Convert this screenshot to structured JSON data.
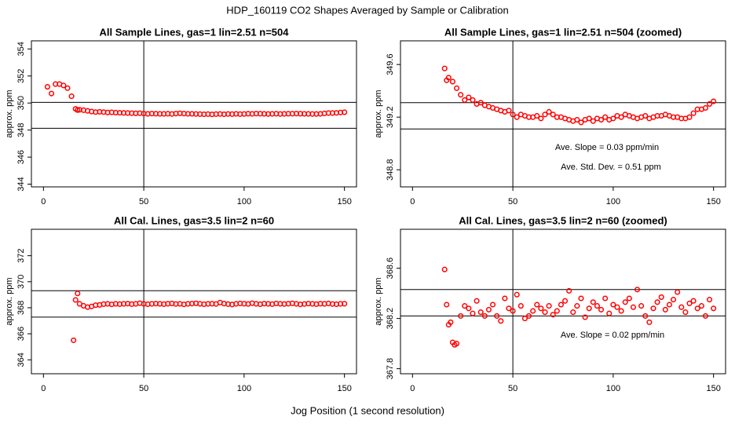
{
  "title": "HDP_160119  CO2 Shapes Averaged by Sample or Calibration",
  "xlabel": "Jog Position (1 second resolution)",
  "chart_data": [
    {
      "type": "scatter",
      "title": "All Sample Lines, gas=1 lin=2.51 n=504",
      "ylabel": "approx. ppm",
      "color": "#ff0000",
      "xlim": [
        -6,
        156
      ],
      "xticks": [
        0,
        50,
        100,
        150
      ],
      "ylim": [
        343.8,
        354.6
      ],
      "yticks": [
        344,
        346,
        348,
        350,
        352,
        354
      ],
      "hlines": [
        350.05,
        348.13
      ],
      "vlines": [
        50
      ],
      "x": [
        2,
        4,
        6,
        8,
        10,
        12,
        14,
        16,
        17,
        18,
        20,
        22,
        24,
        26,
        28,
        30,
        32,
        34,
        36,
        38,
        40,
        42,
        44,
        46,
        48,
        50,
        52,
        54,
        56,
        58,
        60,
        62,
        64,
        66,
        68,
        70,
        72,
        74,
        76,
        78,
        80,
        82,
        84,
        86,
        88,
        90,
        92,
        94,
        96,
        98,
        100,
        102,
        104,
        106,
        108,
        110,
        112,
        114,
        116,
        118,
        120,
        122,
        124,
        126,
        128,
        130,
        132,
        134,
        136,
        138,
        140,
        142,
        144,
        146,
        148,
        150
      ],
      "values": [
        351.2,
        350.7,
        351.4,
        351.4,
        351.3,
        351.1,
        350.5,
        349.57,
        349.48,
        349.5,
        349.47,
        349.42,
        349.37,
        349.33,
        349.35,
        349.33,
        349.3,
        349.31,
        349.29,
        349.28,
        349.27,
        349.26,
        349.25,
        349.24,
        349.25,
        349.22,
        349.2,
        349.22,
        349.21,
        349.2,
        349.2,
        349.21,
        349.19,
        349.22,
        349.24,
        349.22,
        349.2,
        349.2,
        349.19,
        349.18,
        349.17,
        349.18,
        349.16,
        349.18,
        349.19,
        349.17,
        349.19,
        349.18,
        349.2,
        349.18,
        349.19,
        349.21,
        349.2,
        349.22,
        349.21,
        349.2,
        349.19,
        349.2,
        349.21,
        349.19,
        349.2,
        349.21,
        349.21,
        349.22,
        349.21,
        349.2,
        349.2,
        349.19,
        349.19,
        349.2,
        349.23,
        349.26,
        349.26,
        349.27,
        349.3,
        349.32
      ]
    },
    {
      "type": "scatter",
      "title": "All Sample Lines, gas=1 lin=2.51 n=504 (zoomed)",
      "ylabel": "approx. ppm",
      "color": "#ff0000",
      "xlim": [
        -6,
        156
      ],
      "xticks": [
        0,
        50,
        100,
        150
      ],
      "ylim": [
        348.67,
        349.78
      ],
      "yticks": [
        348.8,
        349.2,
        349.6
      ],
      "hlines": [
        349.31,
        349.11
      ],
      "vlines": [
        50
      ],
      "annotations": [
        "Ave. Slope =  0.03  ppm/min",
        "Ave. Std. Dev. =  0.51  ppm"
      ],
      "x": [
        16,
        17,
        18,
        20,
        22,
        24,
        26,
        28,
        30,
        32,
        34,
        36,
        38,
        40,
        42,
        44,
        46,
        48,
        50,
        52,
        54,
        56,
        58,
        60,
        62,
        64,
        66,
        68,
        70,
        72,
        74,
        76,
        78,
        80,
        82,
        84,
        86,
        88,
        90,
        92,
        94,
        96,
        98,
        100,
        102,
        104,
        106,
        108,
        110,
        112,
        114,
        116,
        118,
        120,
        122,
        124,
        126,
        128,
        130,
        132,
        134,
        136,
        138,
        140,
        142,
        144,
        146,
        148,
        150
      ],
      "values": [
        349.57,
        349.48,
        349.5,
        349.47,
        349.42,
        349.37,
        349.33,
        349.35,
        349.33,
        349.3,
        349.31,
        349.29,
        349.28,
        349.27,
        349.26,
        349.25,
        349.24,
        349.25,
        349.22,
        349.2,
        349.22,
        349.21,
        349.2,
        349.2,
        349.21,
        349.19,
        349.22,
        349.24,
        349.22,
        349.2,
        349.2,
        349.19,
        349.18,
        349.17,
        349.18,
        349.16,
        349.18,
        349.19,
        349.17,
        349.19,
        349.18,
        349.2,
        349.18,
        349.19,
        349.21,
        349.2,
        349.22,
        349.21,
        349.2,
        349.19,
        349.2,
        349.21,
        349.19,
        349.2,
        349.21,
        349.21,
        349.22,
        349.21,
        349.2,
        349.2,
        349.19,
        349.19,
        349.2,
        349.23,
        349.26,
        349.26,
        349.27,
        349.3,
        349.32
      ]
    },
    {
      "type": "scatter",
      "title": "All Cal. Lines, gas=3.5 lin=2 n=60",
      "ylabel": "approx. ppm",
      "color": "#ff0000",
      "xlim": [
        -6,
        156
      ],
      "xticks": [
        0,
        50,
        100,
        150
      ],
      "ylim": [
        362.93,
        374.03
      ],
      "yticks": [
        364,
        366,
        368,
        370,
        372
      ],
      "hlines": [
        369.31,
        367.28
      ],
      "vlines": [
        50
      ],
      "x": [
        15,
        16,
        17,
        18,
        20,
        22,
        24,
        26,
        28,
        30,
        32,
        34,
        36,
        38,
        40,
        42,
        44,
        46,
        48,
        50,
        52,
        54,
        56,
        58,
        60,
        62,
        64,
        66,
        68,
        70,
        72,
        74,
        76,
        78,
        80,
        82,
        84,
        86,
        88,
        90,
        92,
        94,
        96,
        98,
        100,
        102,
        104,
        106,
        108,
        110,
        112,
        114,
        116,
        118,
        120,
        122,
        124,
        126,
        128,
        130,
        132,
        134,
        136,
        138,
        140,
        142,
        144,
        146,
        148,
        150
      ],
      "values": [
        365.5,
        368.6,
        369.1,
        368.3,
        368.15,
        368.05,
        368.1,
        368.2,
        368.22,
        368.28,
        368.3,
        368.26,
        368.3,
        368.28,
        368.3,
        368.32,
        368.28,
        368.3,
        368.35,
        368.3,
        368.27,
        368.3,
        368.32,
        368.3,
        368.28,
        368.31,
        368.33,
        368.29,
        368.3,
        368.26,
        368.3,
        368.32,
        368.34,
        368.3,
        368.27,
        368.3,
        368.31,
        368.29,
        368.4,
        368.32,
        368.28,
        368.25,
        368.3,
        368.33,
        368.31,
        368.29,
        368.35,
        368.3,
        368.27,
        368.32,
        368.3,
        368.28,
        368.33,
        368.3,
        368.29,
        368.31,
        368.34,
        368.3,
        368.26,
        368.29,
        368.32,
        368.3,
        368.28,
        368.31,
        368.3,
        368.33,
        368.29,
        368.27,
        368.3,
        368.31
      ]
    },
    {
      "type": "scatter",
      "title": "All Cal. Lines, gas=3.5 lin=2 n=60 (zoomed)",
      "ylabel": "approx. ppm",
      "color": "#ff0000",
      "xlim": [
        -6,
        156
      ],
      "xticks": [
        0,
        50,
        100,
        150
      ],
      "ylim": [
        367.76,
        368.91
      ],
      "yticks": [
        367.8,
        368.2,
        368.6
      ],
      "hlines": [
        368.43,
        368.22
      ],
      "vlines": [
        50
      ],
      "annotations": [
        "Ave. Slope =  0.02  ppm/min"
      ],
      "x": [
        16,
        17,
        18,
        19,
        20,
        21,
        22,
        24,
        26,
        28,
        30,
        32,
        34,
        36,
        38,
        40,
        42,
        44,
        46,
        48,
        50,
        52,
        54,
        56,
        58,
        60,
        62,
        64,
        66,
        68,
        70,
        72,
        74,
        76,
        78,
        80,
        82,
        84,
        86,
        88,
        90,
        92,
        94,
        96,
        98,
        100,
        102,
        104,
        106,
        108,
        110,
        112,
        114,
        116,
        118,
        120,
        122,
        124,
        126,
        128,
        130,
        132,
        134,
        136,
        138,
        140,
        142,
        144,
        146,
        148,
        150
      ],
      "values": [
        368.59,
        368.31,
        368.15,
        368.17,
        368.01,
        367.99,
        368.0,
        368.22,
        368.3,
        368.28,
        368.24,
        368.34,
        368.25,
        368.22,
        368.27,
        368.31,
        368.22,
        368.18,
        368.36,
        368.28,
        368.26,
        368.39,
        368.3,
        368.2,
        368.22,
        368.26,
        368.31,
        368.28,
        368.25,
        368.3,
        368.23,
        368.26,
        368.31,
        368.34,
        368.42,
        368.25,
        368.3,
        368.36,
        368.21,
        368.28,
        368.33,
        368.3,
        368.27,
        368.36,
        368.24,
        368.31,
        368.29,
        368.26,
        368.33,
        368.36,
        368.29,
        368.43,
        368.3,
        368.22,
        368.17,
        368.28,
        368.33,
        368.37,
        368.27,
        368.31,
        368.35,
        368.41,
        368.29,
        368.25,
        368.32,
        368.34,
        368.28,
        368.3,
        368.22,
        368.35,
        368.28
      ]
    }
  ]
}
